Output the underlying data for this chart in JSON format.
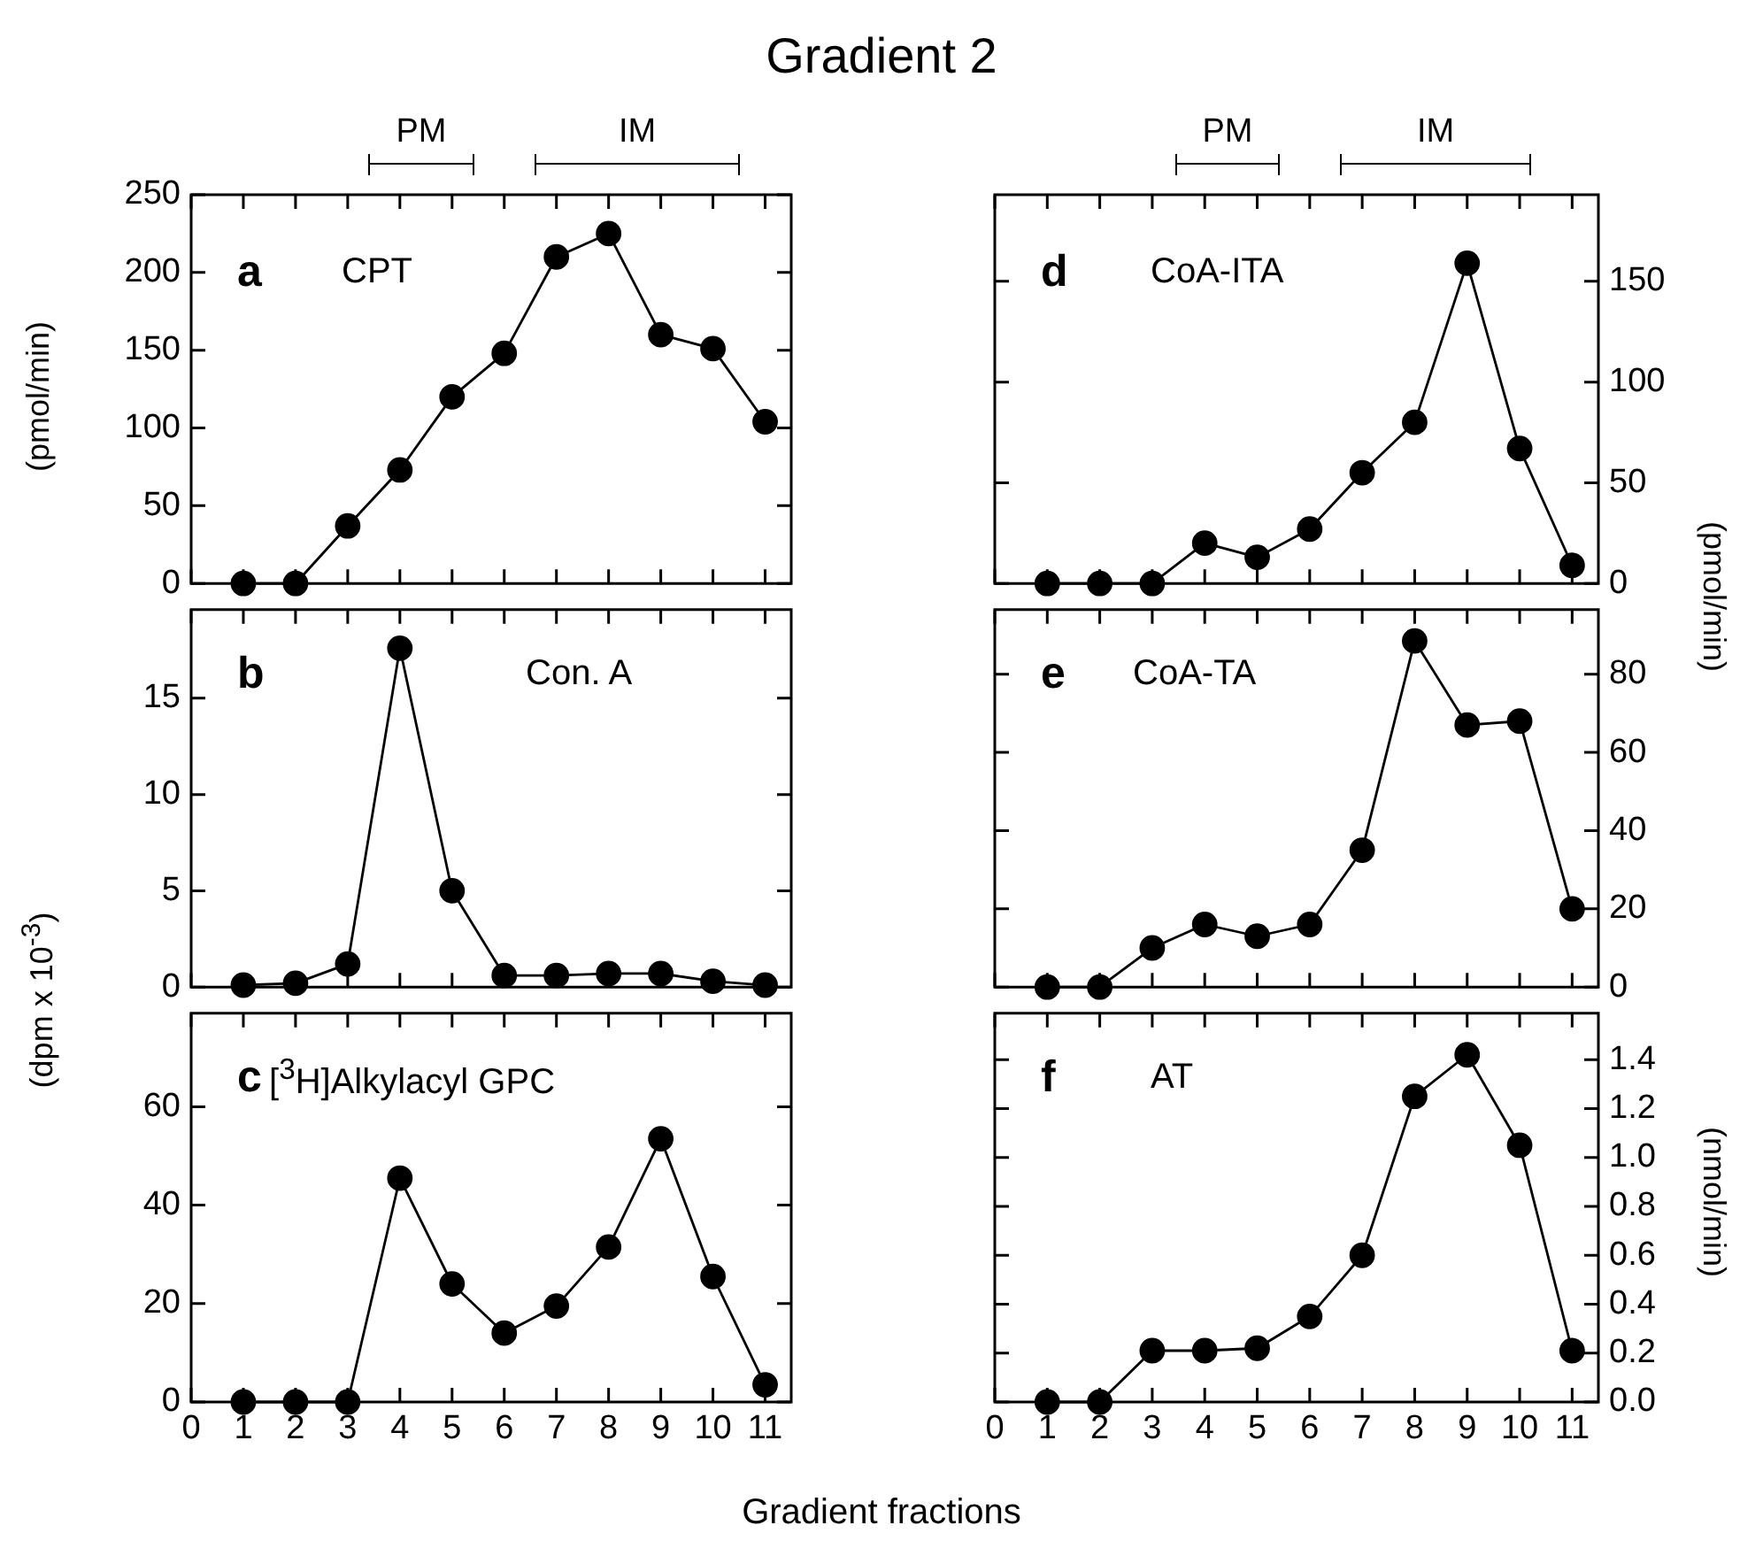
{
  "chart_data": [
    {
      "type": "line",
      "title": "Gradient 2",
      "ylabel": "(pmol/min)",
      "x": [
        1,
        2,
        3,
        4,
        5,
        6,
        7,
        8,
        9,
        10,
        11
      ],
      "values": [
        0,
        0,
        37,
        73,
        120,
        148,
        210,
        225,
        160,
        151,
        104
      ],
      "color": "#000000",
      "marker": "circle",
      "xlim": [
        0,
        11.5
      ],
      "xticks": [
        0,
        1,
        2,
        3,
        4,
        5,
        6,
        7,
        8,
        9,
        10,
        11
      ],
      "ylim": [
        0,
        250
      ],
      "yticks": [
        0,
        50,
        100,
        150,
        200,
        250
      ],
      "tick_labels": "y",
      "annotations": [
        "a",
        "CPT",
        "PM",
        "IM"
      ]
    },
    {
      "type": "line",
      "ylabel": "(dpm x 10$^{-3}$)",
      "x": [
        1,
        2,
        3,
        4,
        5,
        6,
        7,
        8,
        9,
        10,
        11
      ],
      "values": [
        0.1,
        0.2,
        1.2,
        17.6,
        5,
        0.6,
        0.6,
        0.7,
        0.7,
        0.3,
        0.1
      ],
      "color": "#000000",
      "marker": "circle",
      "xlim": [
        0,
        11.5
      ],
      "xticks": [
        0,
        1,
        2,
        3,
        4,
        5,
        6,
        7,
        8,
        9,
        10,
        11
      ],
      "ylim": [
        0,
        19.6
      ],
      "yticks": [
        0,
        5,
        10,
        15
      ],
      "tick_labels": "y",
      "annotations": [
        "b",
        "Con. A"
      ]
    },
    {
      "type": "line",
      "xlabel": "Gradient fractions",
      "x": [
        1,
        2,
        3,
        4,
        5,
        6,
        7,
        8,
        9,
        10,
        11
      ],
      "values": [
        0,
        0,
        0,
        45.5,
        24,
        14,
        19.5,
        31.5,
        53.5,
        25.5,
        3.5
      ],
      "color": "#000000",
      "marker": "circle",
      "xlim": [
        0,
        11.5
      ],
      "xticks": [
        0,
        1,
        2,
        3,
        4,
        5,
        6,
        7,
        8,
        9,
        10,
        11
      ],
      "ylim": [
        0,
        79
      ],
      "yticks": [
        0,
        20,
        40,
        60
      ],
      "annotations": [
        "c",
        "[$^{3}$H]Alkylacyl GPC"
      ]
    },
    {
      "type": "line",
      "ylabel": "(pmol/min)",
      "x": [
        1,
        2,
        3,
        4,
        5,
        6,
        7,
        8,
        9,
        10,
        11
      ],
      "values": [
        0,
        0,
        0,
        20,
        13,
        27,
        55,
        80,
        159,
        67,
        9
      ],
      "color": "#000000",
      "marker": "circle",
      "xlim": [
        0,
        11.5
      ],
      "xticks": [
        0,
        1,
        2,
        3,
        4,
        5,
        6,
        7,
        8,
        9,
        10,
        11
      ],
      "ylim": [
        0,
        193
      ],
      "yticks": [
        0,
        50,
        100,
        150
      ],
      "tick_labels": "y",
      "annotations": [
        "d",
        "CoA-ITA",
        "PM",
        "IM"
      ]
    },
    {
      "type": "line",
      "x": [
        1,
        2,
        3,
        4,
        5,
        6,
        7,
        8,
        9,
        10,
        11
      ],
      "values": [
        0,
        0,
        10,
        16,
        13,
        16,
        35,
        88.5,
        67,
        68,
        20
      ],
      "color": "#000000",
      "marker": "circle",
      "xlim": [
        0,
        11.5
      ],
      "xticks": [
        0,
        1,
        2,
        3,
        4,
        5,
        6,
        7,
        8,
        9,
        10,
        11
      ],
      "ylim": [
        0,
        96.5
      ],
      "yticks": [
        0,
        20,
        40,
        60,
        80
      ],
      "tick_labels": "y",
      "annotations": [
        "e",
        "CoA-TA"
      ]
    },
    {
      "type": "line",
      "ylabel": "(nmol/min)",
      "x": [
        1,
        2,
        3,
        4,
        5,
        6,
        7,
        8,
        9,
        10,
        11
      ],
      "values": [
        0,
        0,
        0.21,
        0.21,
        0.22,
        0.35,
        0.6,
        1.25,
        1.42,
        1.05,
        0.21
      ],
      "color": "#000000",
      "marker": "circle",
      "xlim": [
        0,
        11.5
      ],
      "xticks": [
        0,
        1,
        2,
        3,
        4,
        5,
        6,
        7,
        8,
        9,
        10,
        11
      ],
      "ylim": [
        0,
        1.59
      ],
      "yticks": [
        {
          "value": 0,
          "label": "0.0"
        },
        {
          "value": 0.2,
          "label": "0.2"
        },
        {
          "value": 0.4,
          "label": "0.4"
        },
        {
          "value": 0.6,
          "label": "0.6"
        },
        {
          "value": 0.8,
          "label": "0.8"
        },
        {
          "value": 1,
          "label": "1.0"
        },
        {
          "value": 1.2,
          "label": "1.2"
        },
        {
          "value": 1.4,
          "label": "1.4"
        }
      ],
      "annotations": [
        "f",
        "AT"
      ]
    }
  ]
}
